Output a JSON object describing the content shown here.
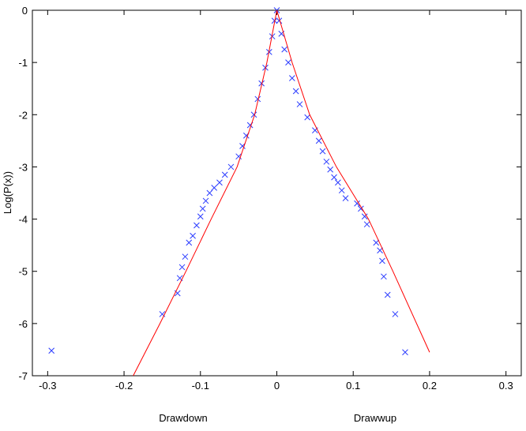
{
  "chart_data": {
    "type": "scatter",
    "ylabel": "Log(P(x))",
    "xlabel_left": "Drawdown",
    "xlabel_right": "Drawwup",
    "xlim": [
      -0.32,
      0.32
    ],
    "ylim": [
      -7,
      0
    ],
    "xticks": [
      -0.3,
      -0.2,
      -0.1,
      0,
      0.1,
      0.2,
      0.3
    ],
    "yticks": [
      -7,
      -6,
      -5,
      -4,
      -3,
      -2,
      -1,
      0
    ],
    "series": [
      {
        "mode": "markers",
        "color": "#2b3cff",
        "x": [
          -0.295,
          -0.15,
          -0.13,
          -0.127,
          -0.124,
          -0.12,
          -0.115,
          -0.11,
          -0.105,
          -0.1,
          -0.097,
          -0.093,
          -0.088,
          -0.082,
          -0.075,
          -0.068,
          -0.06,
          -0.05,
          -0.045,
          -0.04,
          -0.035,
          -0.03,
          -0.025,
          -0.02,
          -0.015,
          -0.01,
          -0.006,
          -0.003,
          0,
          0.003,
          0.006,
          0.01,
          0.015,
          0.02,
          0.025,
          0.03,
          0.04,
          0.05,
          0.055,
          0.06,
          0.065,
          0.07,
          0.075,
          0.08,
          0.085,
          0.09,
          0.105,
          0.11,
          0.115,
          0.118,
          0.13,
          0.135,
          0.138,
          0.14,
          0.145,
          0.155,
          0.168
        ],
        "values": [
          -6.52,
          -5.82,
          -5.42,
          -5.13,
          -4.92,
          -4.72,
          -4.45,
          -4.32,
          -4.12,
          -3.95,
          -3.8,
          -3.65,
          -3.5,
          -3.4,
          -3.3,
          -3.15,
          -3.0,
          -2.8,
          -2.6,
          -2.4,
          -2.2,
          -2.0,
          -1.7,
          -1.4,
          -1.1,
          -0.8,
          -0.5,
          -0.2,
          0,
          -0.2,
          -0.45,
          -0.75,
          -1.0,
          -1.3,
          -1.55,
          -1.8,
          -2.05,
          -2.3,
          -2.5,
          -2.7,
          -2.9,
          -3.05,
          -3.2,
          -3.3,
          -3.45,
          -3.6,
          -3.7,
          -3.8,
          -3.95,
          -4.1,
          -4.45,
          -4.6,
          -4.8,
          -5.1,
          -5.45,
          -5.82,
          -6.55
        ]
      },
      {
        "mode": "line",
        "color": "#ff0000",
        "x": [
          -0.188,
          -0.153,
          -0.119,
          -0.086,
          -0.052,
          -0.029,
          -0.013,
          0,
          0.02,
          0.043,
          0.078,
          0.12,
          0.152,
          0.2
        ],
        "values": [
          -7,
          -6,
          -5,
          -4,
          -3,
          -2,
          -1,
          0,
          -1,
          -2,
          -3,
          -4,
          -5,
          -6.55
        ]
      }
    ]
  }
}
